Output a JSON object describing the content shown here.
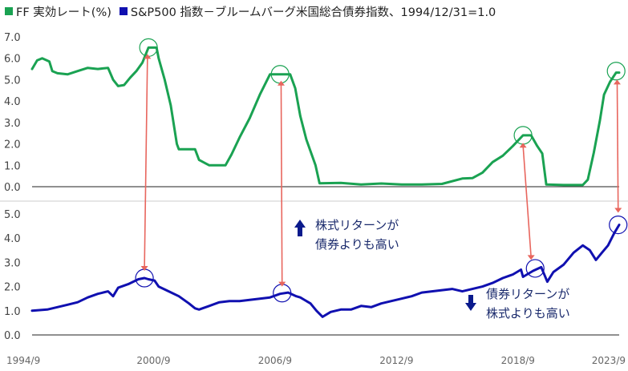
{
  "legend": [
    {
      "label": "FF 実効レート(%)",
      "color": "#1aa252"
    },
    {
      "label": "S&P500 指数－ブルームバーグ米国総合債券指数、1994/12/31=1.0",
      "color": "#1010b0"
    }
  ],
  "chart_data": {
    "type": "line",
    "x_ticks": [
      "1994/9",
      "2000/9",
      "2006/9",
      "2012/9",
      "2018/9",
      "2023/9"
    ],
    "panels": [
      {
        "name": "top",
        "ylim": [
          0,
          7
        ],
        "y_ticks": [
          "0.0",
          "1.0",
          "2.0",
          "3.0",
          "4.0",
          "5.0",
          "6.0",
          "7.0"
        ],
        "series": [
          {
            "name": "FF 実効レート(%)",
            "color": "#1aa252",
            "points": [
              [
                1994.75,
                5.5
              ],
              [
                1995.0,
                5.9
              ],
              [
                1995.25,
                6.0
              ],
              [
                1995.6,
                5.85
              ],
              [
                1995.75,
                5.4
              ],
              [
                1996.0,
                5.3
              ],
              [
                1996.5,
                5.25
              ],
              [
                1997.0,
                5.4
              ],
              [
                1997.5,
                5.55
              ],
              [
                1998.0,
                5.5
              ],
              [
                1998.5,
                5.55
              ],
              [
                1998.75,
                5.0
              ],
              [
                1999.0,
                4.7
              ],
              [
                1999.3,
                4.75
              ],
              [
                1999.6,
                5.1
              ],
              [
                1999.9,
                5.4
              ],
              [
                2000.2,
                5.8
              ],
              [
                2000.5,
                6.5
              ],
              [
                2000.9,
                6.5
              ],
              [
                2001.0,
                6.0
              ],
              [
                2001.3,
                5.0
              ],
              [
                2001.6,
                3.8
              ],
              [
                2001.9,
                2.0
              ],
              [
                2002.0,
                1.75
              ],
              [
                2002.8,
                1.75
              ],
              [
                2003.0,
                1.25
              ],
              [
                2003.5,
                1.0
              ],
              [
                2004.3,
                1.0
              ],
              [
                2004.6,
                1.5
              ],
              [
                2005.0,
                2.3
              ],
              [
                2005.5,
                3.2
              ],
              [
                2006.0,
                4.3
              ],
              [
                2006.5,
                5.25
              ],
              [
                2007.5,
                5.25
              ],
              [
                2007.75,
                4.6
              ],
              [
                2008.0,
                3.3
              ],
              [
                2008.3,
                2.2
              ],
              [
                2008.75,
                1.0
              ],
              [
                2008.95,
                0.16
              ],
              [
                2010.0,
                0.18
              ],
              [
                2011.0,
                0.1
              ],
              [
                2012.0,
                0.15
              ],
              [
                2013.0,
                0.1
              ],
              [
                2014.0,
                0.1
              ],
              [
                2015.0,
                0.13
              ],
              [
                2016.0,
                0.38
              ],
              [
                2016.5,
                0.4
              ],
              [
                2017.0,
                0.66
              ],
              [
                2017.5,
                1.15
              ],
              [
                2018.0,
                1.45
              ],
              [
                2018.5,
                1.9
              ],
              [
                2019.0,
                2.4
              ],
              [
                2019.4,
                2.4
              ],
              [
                2019.7,
                1.9
              ],
              [
                2019.95,
                1.55
              ],
              [
                2020.15,
                0.1
              ],
              [
                2021.0,
                0.08
              ],
              [
                2021.95,
                0.08
              ],
              [
                2022.2,
                0.33
              ],
              [
                2022.5,
                1.6
              ],
              [
                2022.8,
                3.1
              ],
              [
                2023.0,
                4.3
              ],
              [
                2023.3,
                4.9
              ],
              [
                2023.6,
                5.33
              ],
              [
                2023.75,
                5.33
              ]
            ]
          }
        ],
        "circles": [
          [
            2000.5,
            6.5
          ],
          [
            2007.0,
            5.25
          ],
          [
            2019.0,
            2.4
          ],
          [
            2023.6,
            5.4
          ]
        ]
      },
      {
        "name": "bottom",
        "ylim": [
          0,
          5
        ],
        "y_ticks": [
          "0.0",
          "1.0",
          "2.0",
          "3.0",
          "4.0",
          "5.0"
        ],
        "series": [
          {
            "name": "S&P500 指数－ブルームバーグ米国総合債券指数、1994/12/31=1.0",
            "color": "#1010b0",
            "points": [
              [
                1994.75,
                1.0
              ],
              [
                1995.5,
                1.05
              ],
              [
                1996.0,
                1.15
              ],
              [
                1996.5,
                1.25
              ],
              [
                1997.0,
                1.35
              ],
              [
                1997.5,
                1.55
              ],
              [
                1998.0,
                1.7
              ],
              [
                1998.5,
                1.8
              ],
              [
                1998.75,
                1.6
              ],
              [
                1999.0,
                1.95
              ],
              [
                1999.5,
                2.1
              ],
              [
                2000.0,
                2.3
              ],
              [
                2000.3,
                2.35
              ],
              [
                2000.5,
                2.3
              ],
              [
                2000.8,
                2.25
              ],
              [
                2001.0,
                2.0
              ],
              [
                2001.5,
                1.8
              ],
              [
                2002.0,
                1.6
              ],
              [
                2002.5,
                1.3
              ],
              [
                2002.8,
                1.1
              ],
              [
                2003.0,
                1.05
              ],
              [
                2003.5,
                1.2
              ],
              [
                2004.0,
                1.35
              ],
              [
                2004.5,
                1.4
              ],
              [
                2005.0,
                1.4
              ],
              [
                2005.5,
                1.45
              ],
              [
                2006.0,
                1.5
              ],
              [
                2006.5,
                1.55
              ],
              [
                2007.0,
                1.7
              ],
              [
                2007.4,
                1.75
              ],
              [
                2007.8,
                1.6
              ],
              [
                2008.0,
                1.55
              ],
              [
                2008.5,
                1.3
              ],
              [
                2008.8,
                1.0
              ],
              [
                2009.1,
                0.75
              ],
              [
                2009.5,
                0.95
              ],
              [
                2010.0,
                1.05
              ],
              [
                2010.5,
                1.05
              ],
              [
                2011.0,
                1.2
              ],
              [
                2011.5,
                1.15
              ],
              [
                2012.0,
                1.3
              ],
              [
                2012.5,
                1.4
              ],
              [
                2013.0,
                1.5
              ],
              [
                2013.5,
                1.6
              ],
              [
                2014.0,
                1.75
              ],
              [
                2014.5,
                1.8
              ],
              [
                2015.0,
                1.85
              ],
              [
                2015.5,
                1.9
              ],
              [
                2016.0,
                1.8
              ],
              [
                2016.5,
                1.9
              ],
              [
                2017.0,
                2.0
              ],
              [
                2017.5,
                2.15
              ],
              [
                2018.0,
                2.35
              ],
              [
                2018.5,
                2.5
              ],
              [
                2018.9,
                2.7
              ],
              [
                2019.0,
                2.4
              ],
              [
                2019.5,
                2.65
              ],
              [
                2019.9,
                2.8
              ],
              [
                2020.2,
                2.2
              ],
              [
                2020.5,
                2.6
              ],
              [
                2021.0,
                2.9
              ],
              [
                2021.5,
                3.4
              ],
              [
                2021.95,
                3.7
              ],
              [
                2022.3,
                3.5
              ],
              [
                2022.6,
                3.1
              ],
              [
                2022.9,
                3.4
              ],
              [
                2023.2,
                3.7
              ],
              [
                2023.5,
                4.2
              ],
              [
                2023.75,
                4.55
              ]
            ]
          }
        ],
        "circles": [
          [
            2000.3,
            2.35
          ],
          [
            2007.1,
            1.73
          ],
          [
            2019.6,
            2.75
          ],
          [
            2023.7,
            4.55
          ]
        ]
      }
    ],
    "arrows": [
      {
        "x1": 2000.45,
        "p1": "top",
        "y1": 6.2,
        "x2": 2000.3,
        "p2": "bottom",
        "y2": 2.65
      },
      {
        "x1": 2007.05,
        "p1": "top",
        "y1": 4.95,
        "x2": 2007.1,
        "p2": "bottom",
        "y2": 2.0
      },
      {
        "x1": 2019.0,
        "p1": "top",
        "y1": 2.05,
        "x2": 2019.4,
        "p2": "bottom",
        "y2": 3.1
      },
      {
        "x1": 2023.65,
        "p1": "top",
        "y1": 5.0,
        "x2": 2023.7,
        "p2": "bottom",
        "y2": 5.05
      }
    ],
    "annotations": [
      {
        "direction": "up",
        "lines": [
          "株式リターンが",
          "債券よりも高い"
        ],
        "color": "#0a1a8c"
      },
      {
        "direction": "down",
        "lines": [
          "債券リターンが",
          "株式よりも高い"
        ],
        "color": "#0a1a8c"
      }
    ],
    "arrow_color": "#e8665e",
    "circle_colors": {
      "top": "#1aa252",
      "bottom": "#1010b0"
    }
  }
}
